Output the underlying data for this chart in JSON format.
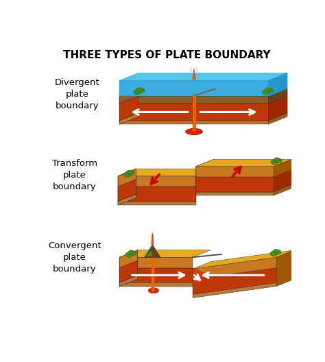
{
  "title": "THREE TYPES OF PLATE BOUNDARY",
  "title_fontsize": 11,
  "title_fontweight": "bold",
  "background_color": "#ffffff",
  "labels": [
    "Divergent\nplate\nboundary",
    "Transform\nplate\nboundary",
    "Convergent\nplate\nboundary"
  ],
  "label_fontsize": 9.5,
  "colors": {
    "water_top": "#55c8ea",
    "water_top2": "#8dddf0",
    "water_front": "#3aace0",
    "water_right": "#2898cc",
    "ground_top": "#6db84a",
    "ground_top_dark": "#5a9a3a",
    "ground_front": "#8b5e2a",
    "ground_right": "#6b4018",
    "mantle_top": "#d04010",
    "mantle_front": "#c03808",
    "mantle_right": "#a02800",
    "base_top": "#d4a060",
    "base_front": "#b87838",
    "base_right": "#9a6020",
    "sand_top": "#e8a820",
    "sand_top2": "#f0bc30",
    "sand_front": "#c87820",
    "sand_right": "#a05808",
    "lava_red": "#e02000",
    "lava_orange": "#f06000",
    "lava_bright": "#ff8800",
    "arrow_white": "#ffffff",
    "arrow_red": "#cc0000",
    "volcano_dark": "#604020",
    "volcano_lava": "#804010",
    "green_bush": "#4a8a20",
    "green_bush_dark": "#336610",
    "smoke_color": "#c8d8e0"
  }
}
